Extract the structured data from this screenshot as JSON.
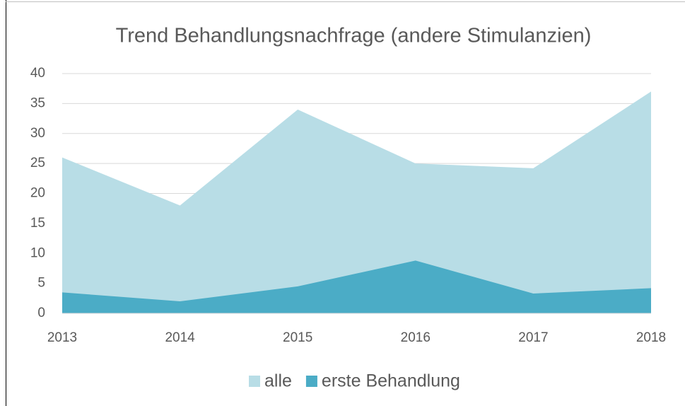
{
  "chart_data": {
    "type": "area",
    "title": "Trend Behandlungsnachfrage  (andere Stimulanzien)",
    "categories": [
      "2013",
      "2014",
      "2015",
      "2016",
      "2017",
      "2018"
    ],
    "series": [
      {
        "name": "alle",
        "color": "#b8dde6",
        "values": [
          26,
          18,
          34,
          25,
          24.2,
          37
        ]
      },
      {
        "name": "erste Behandlung",
        "color": "#4bacc6",
        "values": [
          3.5,
          2,
          4.5,
          8.8,
          3.3,
          4.2
        ]
      }
    ],
    "ylim": [
      0,
      40
    ],
    "yticks": [
      0,
      5,
      10,
      15,
      20,
      25,
      30,
      35,
      40
    ],
    "grid": true,
    "legend": "bottom"
  }
}
